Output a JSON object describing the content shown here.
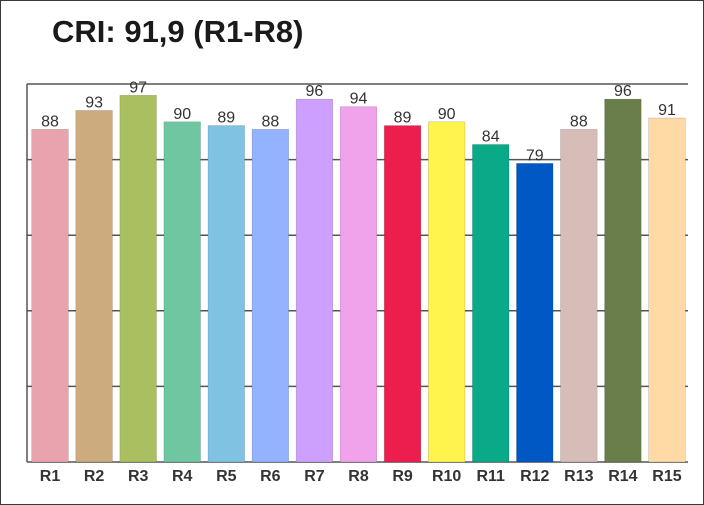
{
  "chart_data": {
    "type": "bar",
    "title": "CRI: 91,9 (R1-R8)",
    "xlabel": "",
    "ylabel": "",
    "ylim": [
      0,
      100
    ],
    "grid": true,
    "legend": "none",
    "categories": [
      "R1",
      "R2",
      "R3",
      "R4",
      "R5",
      "R6",
      "R7",
      "R8",
      "R9",
      "R10",
      "R11",
      "R12",
      "R13",
      "R14",
      "R15"
    ],
    "values": [
      88,
      93,
      97,
      90,
      89,
      88,
      96,
      94,
      89,
      90,
      84,
      79,
      88,
      96,
      91
    ],
    "colors": [
      "#E8A3AE",
      "#CCAC7E",
      "#AABF60",
      "#6FC7A1",
      "#80C2E2",
      "#93B3FF",
      "#CDA0FF",
      "#F0A2EB",
      "#EC1E4E",
      "#FFF44D",
      "#0AAA88",
      "#0058C4",
      "#D6BDB8",
      "#6A7E4A",
      "#FFD9A6"
    ]
  }
}
